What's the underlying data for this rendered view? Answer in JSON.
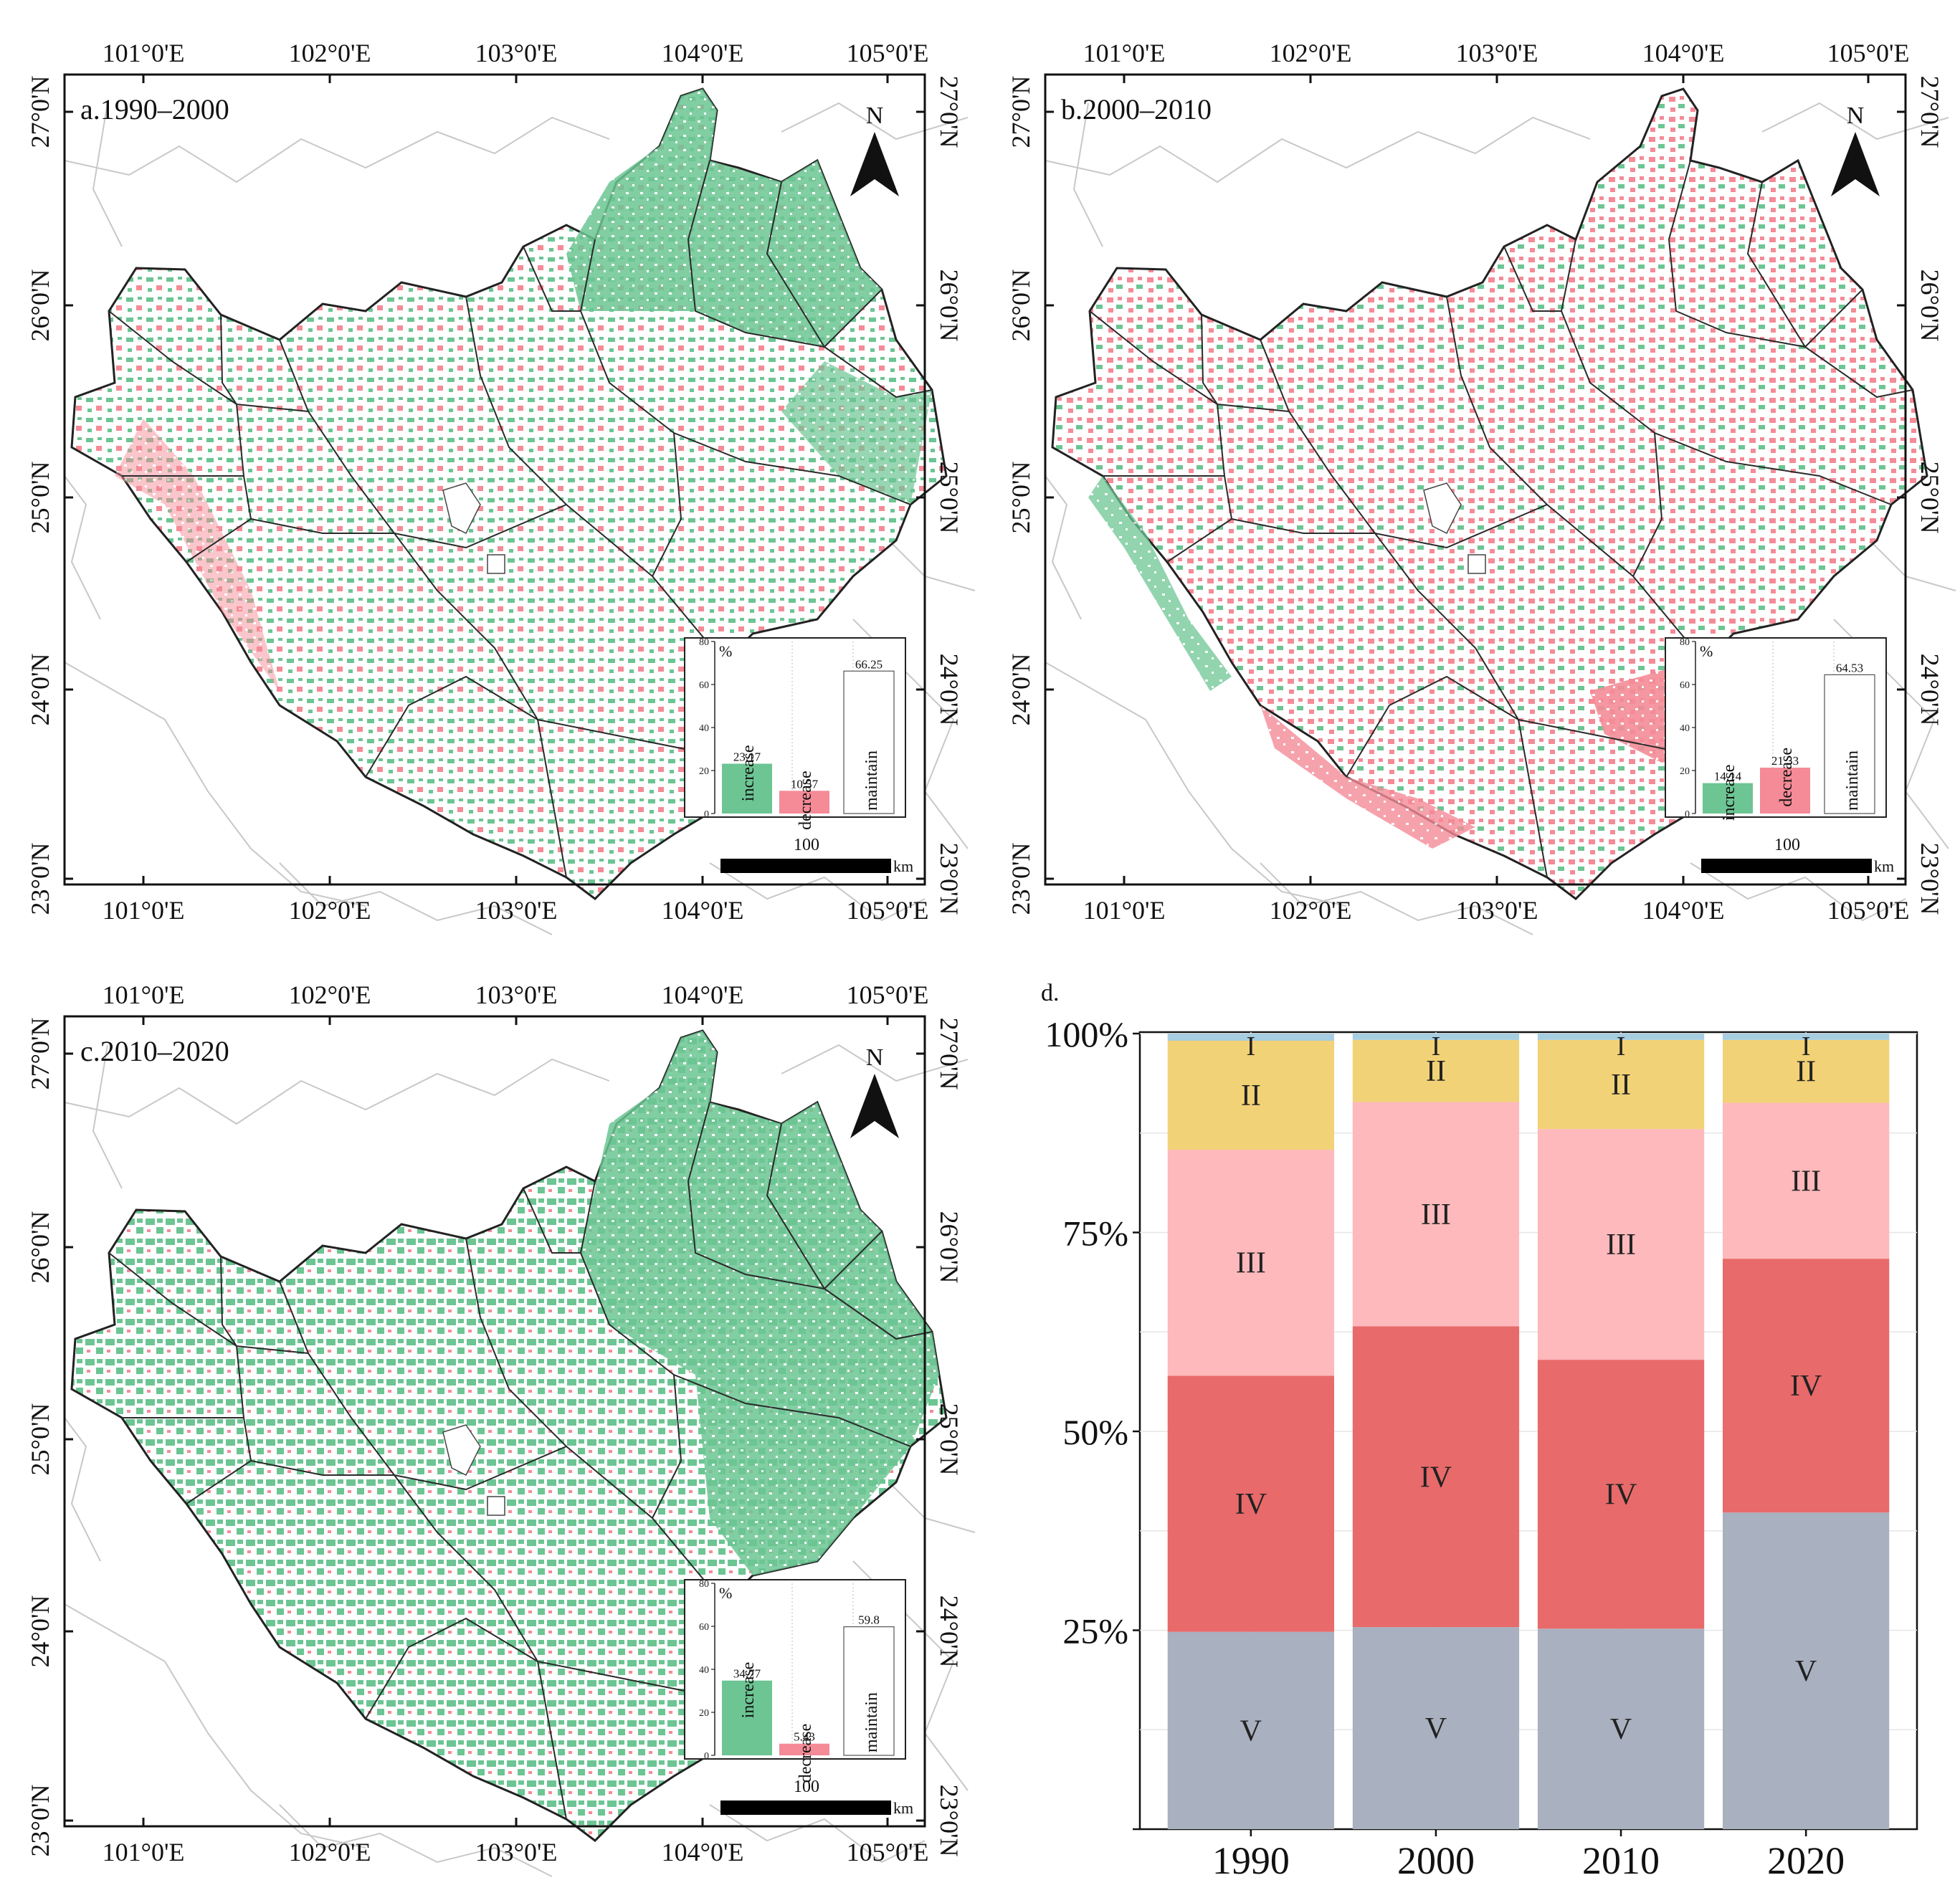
{
  "colors": {
    "increase": "#6cc593",
    "decrease": "#f48b97",
    "maintain": "#ffffff",
    "class_I": "#a7cde0",
    "class_II": "#f2d276",
    "class_III": "#fdb9bc",
    "class_IV": "#e86a6a",
    "class_V": "#a9b0bf"
  },
  "maps": [
    {
      "id": "a",
      "title": "a.1990–2000",
      "lon_labels": [
        "101°0'E",
        "102°0'E",
        "103°0'E",
        "104°0'E",
        "105°0'E"
      ],
      "lat_labels": [
        "27°0'N",
        "26°0'N",
        "25°0'N",
        "24°0'N",
        "23°0'N"
      ],
      "north": "N",
      "scale_value": "100",
      "scale_unit": "km",
      "inset": {
        "unit": "%",
        "y_ticks": [
          "80",
          "60",
          "40",
          "20",
          "0"
        ],
        "bars": [
          {
            "label": "increase",
            "value": 23.17,
            "value_label": "23.17"
          },
          {
            "label": "decrease",
            "value": 10.57,
            "value_label": "10.57"
          },
          {
            "label": "maintain",
            "value": 66.25,
            "value_label": "66.25"
          }
        ]
      }
    },
    {
      "id": "b",
      "title": "b.2000–2010",
      "lon_labels": [
        "101°0'E",
        "102°0'E",
        "103°0'E",
        "104°0'E",
        "105°0'E"
      ],
      "lat_labels": [
        "27°0'N",
        "26°0'N",
        "25°0'N",
        "24°0'N",
        "23°0'N"
      ],
      "north": "N",
      "scale_value": "100",
      "scale_unit": "km",
      "inset": {
        "unit": "%",
        "y_ticks": [
          "80",
          "60",
          "40",
          "20",
          "0"
        ],
        "bars": [
          {
            "label": "increase",
            "value": 14.14,
            "value_label": "14.14"
          },
          {
            "label": "decrease",
            "value": 21.33,
            "value_label": "21.33"
          },
          {
            "label": "maintain",
            "value": 64.53,
            "value_label": "64.53"
          }
        ]
      }
    },
    {
      "id": "c",
      "title": "c.2010–2020",
      "lon_labels": [
        "101°0'E",
        "102°0'E",
        "103°0'E",
        "104°0'E",
        "105°0'E"
      ],
      "lat_labels": [
        "27°0'N",
        "26°0'N",
        "25°0'N",
        "24°0'N",
        "23°0'N"
      ],
      "north": "N",
      "scale_value": "100",
      "scale_unit": "km",
      "inset": {
        "unit": "%",
        "y_ticks": [
          "80",
          "60",
          "40",
          "20",
          "0"
        ],
        "bars": [
          {
            "label": "increase",
            "value": 34.77,
            "value_label": "34.77"
          },
          {
            "label": "decrease",
            "value": 5.43,
            "value_label": "5.43"
          },
          {
            "label": "maintain",
            "value": 59.8,
            "value_label": "59.8"
          }
        ]
      }
    }
  ],
  "chart_data": {
    "type": "bar",
    "stacked": true,
    "title": "d.",
    "categories": [
      "1990",
      "2000",
      "2010",
      "2020"
    ],
    "y_ticks": [
      "100%",
      "75%",
      "50%",
      "25%"
    ],
    "ylim": [
      0,
      100
    ],
    "series": [
      {
        "name": "V",
        "values": [
          24.8,
          25.4,
          25.2,
          39.8
        ]
      },
      {
        "name": "IV",
        "values": [
          32.2,
          37.8,
          33.8,
          31.9
        ]
      },
      {
        "name": "III",
        "values": [
          28.4,
          28.2,
          29.0,
          19.6
        ]
      },
      {
        "name": "II",
        "values": [
          13.7,
          7.8,
          11.2,
          7.9
        ]
      },
      {
        "name": "I",
        "values": [
          0.9,
          0.8,
          0.8,
          0.8
        ]
      }
    ]
  }
}
